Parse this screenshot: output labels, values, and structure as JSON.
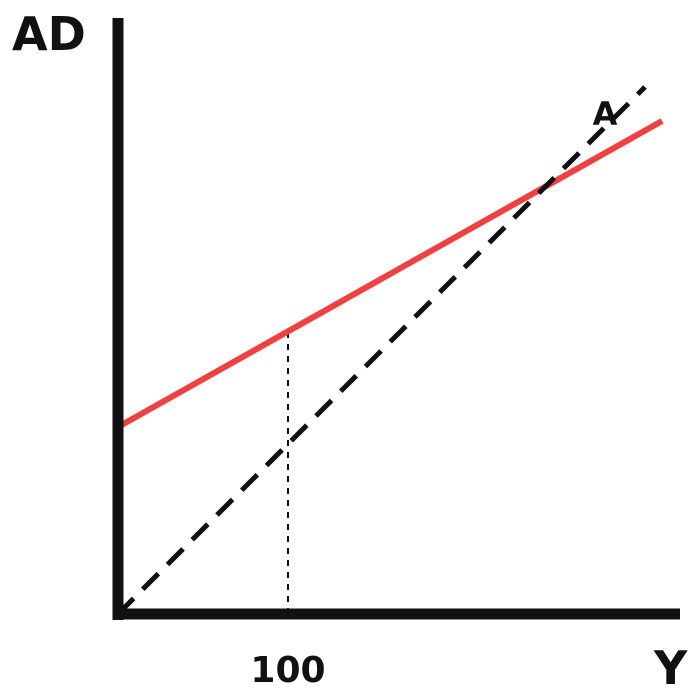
{
  "chart_data": {
    "type": "line",
    "title": "",
    "xlabel": "Y",
    "ylabel": "AD",
    "xlim": [
      0,
      320
    ],
    "ylim": [
      0,
      320
    ],
    "x_ticks": [
      {
        "value": 100,
        "label": "100"
      }
    ],
    "series": [
      {
        "name": "",
        "style": "solid",
        "color": "#f04040",
        "x": [
          0,
          320
        ],
        "y": [
          110,
          290
        ]
      },
      {
        "name": "A",
        "style": "dashed",
        "color": "#111111",
        "x": [
          0,
          310
        ],
        "y": [
          0,
          310
        ]
      }
    ],
    "reference_lines": [
      {
        "style": "dotted",
        "x": 100,
        "y_from": 0,
        "y_to": 166
      }
    ],
    "grid": false,
    "legend": "none"
  }
}
